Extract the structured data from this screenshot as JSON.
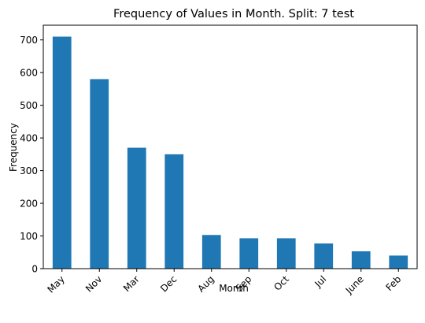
{
  "chart_data": {
    "type": "bar",
    "title": "Frequency of Values in Month. Split: 7 test",
    "xlabel": "Month",
    "ylabel": "Frequency",
    "categories": [
      "May",
      "Nov",
      "Mar",
      "Dec",
      "Aug",
      "Sep",
      "Oct",
      "Jul",
      "June",
      "Feb"
    ],
    "values": [
      710,
      580,
      370,
      350,
      103,
      93,
      93,
      77,
      53,
      40
    ],
    "ylim": [
      0,
      745
    ],
    "yticks": [
      0,
      100,
      200,
      300,
      400,
      500,
      600,
      700
    ],
    "bar_color": "#1f77b4",
    "grid": false,
    "legend": "none"
  }
}
